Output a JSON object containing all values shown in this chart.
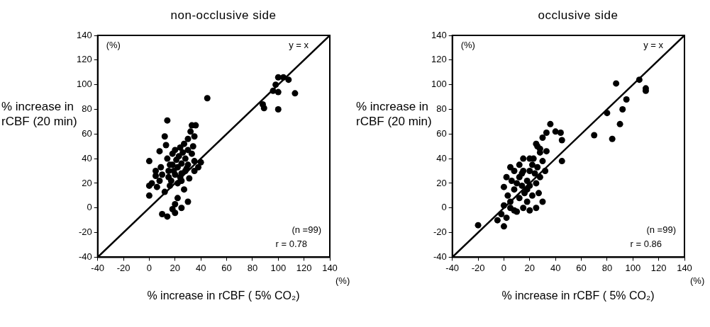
{
  "chart_data": [
    {
      "type": "scatter",
      "title": "non-occlusive side",
      "xlabel": "% increase in rCBF ( 5% CO₂)",
      "ylabel": "% increase in rCBF (20 min)",
      "annotations": [
        "(%)",
        "(%)",
        "(n =99)",
        "r = 0.78"
      ],
      "xlim": [
        -40,
        140
      ],
      "ylim": [
        -40,
        140
      ],
      "xticks": [
        -40,
        -20,
        0,
        20,
        40,
        60,
        80,
        100,
        120,
        140
      ],
      "yticks": [
        -40,
        -20,
        0,
        20,
        40,
        60,
        80,
        100,
        120,
        140
      ],
      "grid": false,
      "marker": "circle",
      "legend": false,
      "series": [
        {
          "color": "#000000",
          "x": [
            45,
            14,
            100,
            104,
            108,
            98,
            96,
            100,
            113,
            88,
            89,
            100,
            0,
            0,
            0,
            2,
            5,
            6,
            8,
            9,
            10,
            12,
            13,
            14,
            15,
            15,
            16,
            17,
            18,
            18,
            19,
            20,
            20,
            21,
            22,
            22,
            23,
            24,
            25,
            25,
            26,
            27,
            28,
            29,
            30,
            30,
            31,
            32,
            33,
            34,
            35,
            35,
            36,
            38,
            40,
            22,
            20,
            18,
            20,
            25,
            10,
            14,
            30,
            12,
            25,
            30,
            28,
            33,
            24,
            16,
            8,
            5,
            27,
            35
          ],
          "values": [
            89,
            71,
            106,
            106,
            104,
            100,
            95,
            94,
            93,
            84,
            81,
            80,
            38,
            18,
            10,
            20,
            26,
            17,
            46,
            33,
            27,
            58,
            51,
            40,
            30,
            25,
            18,
            22,
            44,
            35,
            30,
            27,
            47,
            39,
            33,
            20,
            42,
            49,
            36,
            28,
            45,
            52,
            40,
            32,
            56,
            47,
            24,
            62,
            67,
            50,
            58,
            38,
            67,
            33,
            37,
            8,
            3,
            -1,
            -4,
            0,
            -5,
            -7,
            5,
            13,
            22,
            35,
            30,
            44,
            25,
            35,
            22,
            30,
            15,
            30
          ]
        },
        {
          "type": "line",
          "name": "y = x",
          "color": "#000000",
          "marker": "none",
          "x": [
            -40,
            140
          ],
          "values": [
            -40,
            140
          ]
        }
      ]
    },
    {
      "type": "scatter",
      "title": "occlusive side",
      "xlabel": "% increase in rCBF ( 5% CO₂)",
      "ylabel": "% increase in rCBF (20 min)",
      "annotations": [
        "(%)",
        "(%)",
        "(n =99)",
        "r = 0.86"
      ],
      "xlim": [
        -40,
        140
      ],
      "ylim": [
        -40,
        140
      ],
      "xticks": [
        -40,
        -20,
        0,
        20,
        40,
        60,
        80,
        100,
        120,
        140
      ],
      "yticks": [
        -40,
        -20,
        0,
        20,
        40,
        60,
        80,
        100,
        120,
        140
      ],
      "grid": false,
      "marker": "circle",
      "legend": false,
      "series": [
        {
          "color": "#000000",
          "x": [
            105,
            87,
            110,
            110,
            95,
            92,
            80,
            90,
            70,
            84,
            36,
            40,
            44,
            45,
            33,
            30,
            25,
            26,
            28,
            33,
            45,
            20,
            15,
            12,
            5,
            0,
            2,
            3,
            5,
            8,
            10,
            12,
            14,
            15,
            18,
            20,
            22,
            24,
            25,
            27,
            28,
            30,
            25,
            20,
            15,
            10,
            22,
            18,
            -2,
            -5,
            -20,
            0,
            2,
            8,
            5,
            0,
            12,
            18,
            23,
            26,
            8,
            16,
            30,
            32,
            28,
            20,
            6,
            14
          ],
          "values": [
            104,
            101,
            97,
            95,
            88,
            80,
            77,
            68,
            59,
            56,
            68,
            62,
            61,
            55,
            61,
            57,
            52,
            50,
            48,
            46,
            38,
            40,
            40,
            35,
            33,
            17,
            25,
            10,
            5,
            15,
            20,
            25,
            18,
            30,
            22,
            30,
            35,
            28,
            20,
            12,
            25,
            5,
            0,
            -2,
            0,
            -3,
            10,
            5,
            -5,
            -10,
            -14,
            -15,
            -8,
            -2,
            0,
            2,
            8,
            15,
            40,
            33,
            30,
            12,
            38,
            30,
            45,
            18,
            22,
            28
          ]
        },
        {
          "type": "line",
          "name": "y = x",
          "color": "#000000",
          "marker": "none",
          "x": [
            -40,
            140
          ],
          "values": [
            -40,
            140
          ]
        }
      ]
    }
  ]
}
